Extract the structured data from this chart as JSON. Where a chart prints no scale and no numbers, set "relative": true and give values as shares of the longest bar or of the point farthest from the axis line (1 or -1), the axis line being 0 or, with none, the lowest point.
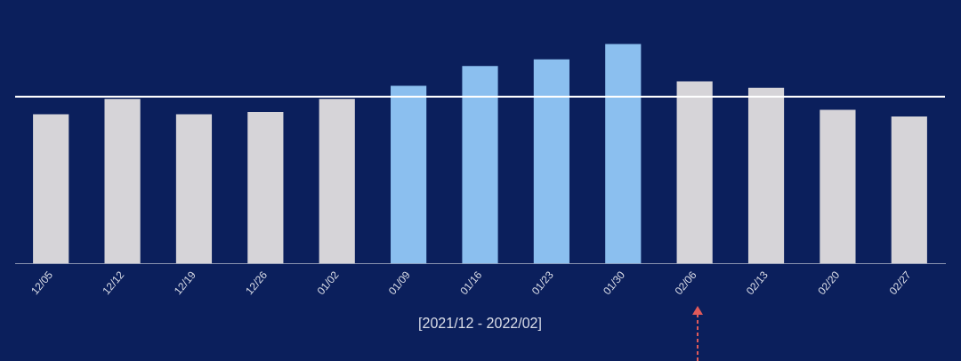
{
  "chart_data": {
    "type": "bar",
    "relative": true,
    "xlabel": "[2021/12 - 2022/02]",
    "categories": [
      "12/05",
      "12/12",
      "12/19",
      "12/26",
      "01/02",
      "01/09",
      "01/16",
      "01/23",
      "01/30",
      "02/06",
      "02/13",
      "02/20",
      "02/27"
    ],
    "values": [
      0.68,
      0.75,
      0.68,
      0.69,
      0.75,
      0.81,
      0.9,
      0.93,
      1,
      0.83,
      0.8,
      0.7,
      0.67
    ],
    "colors": [
      "#d6d4d8",
      "#d6d4d8",
      "#d6d4d8",
      "#d6d4d8",
      "#d6d4d8",
      "#8bbfef",
      "#8bbfef",
      "#8bbfef",
      "#8bbfef",
      "#d6d4d8",
      "#d6d4d8",
      "#d6d4d8",
      "#d6d4d8"
    ],
    "ref_lines": [
      {
        "axis": "y",
        "value": 0.76,
        "color": "#ffffff"
      }
    ],
    "grid": false,
    "legend": false
  }
}
